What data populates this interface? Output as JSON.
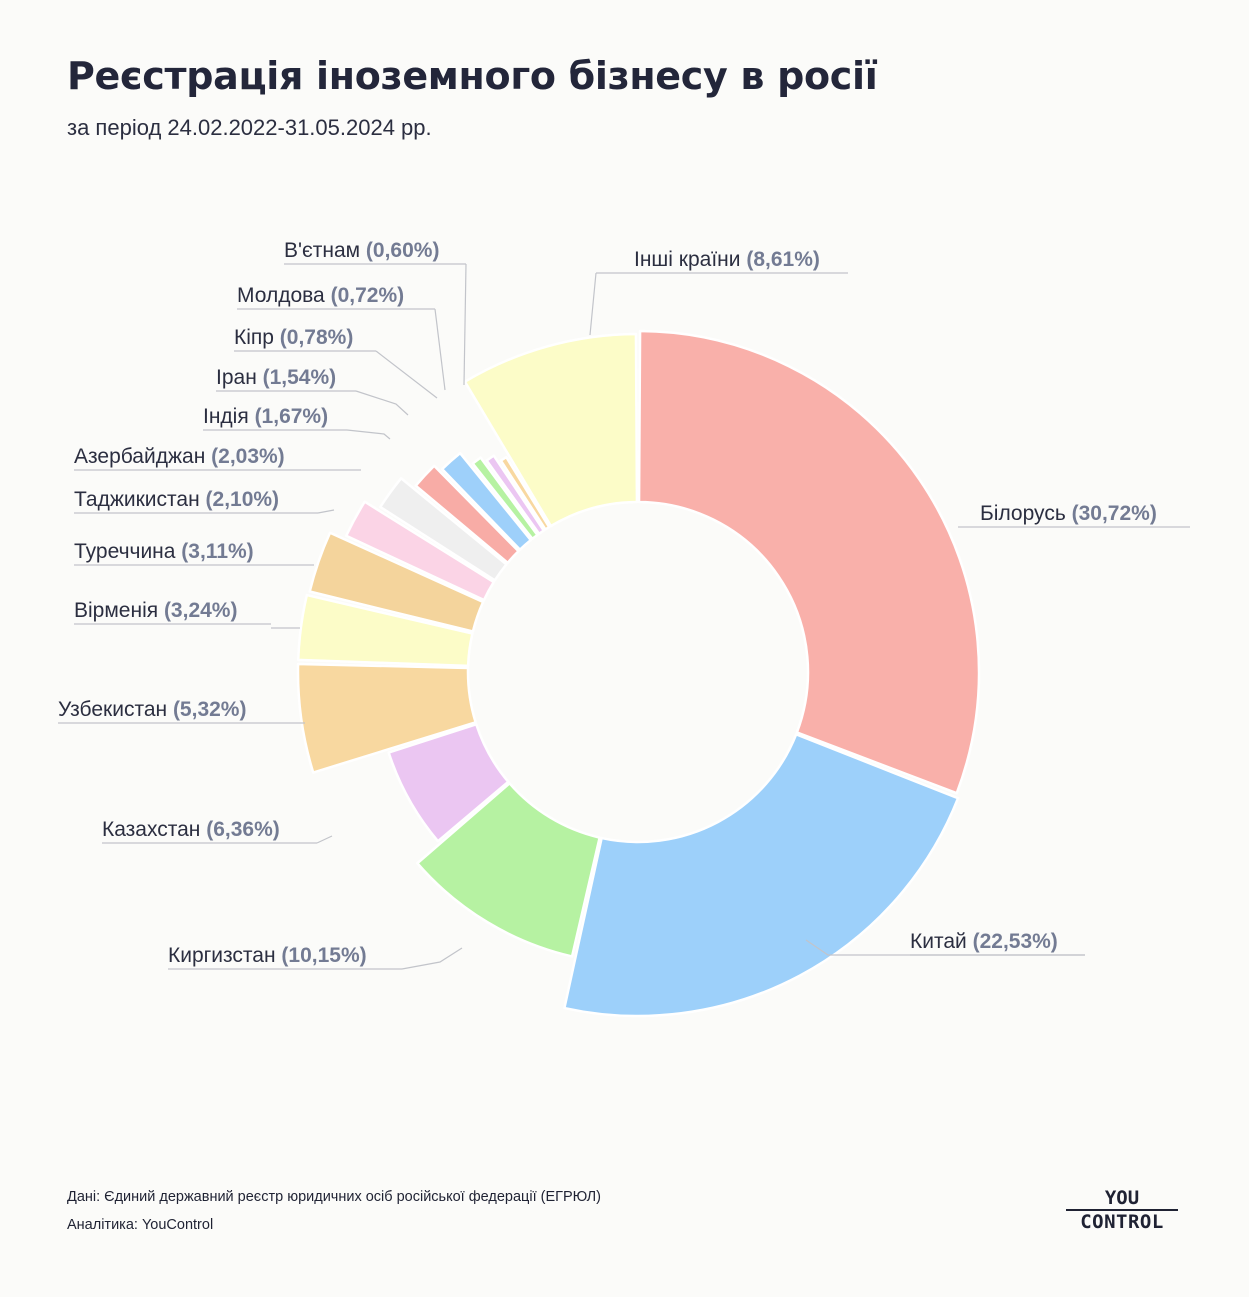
{
  "header": {
    "title": "Реєстрація іноземного бізнесу в росії",
    "subtitle": "за період 24.02.2022-31.05.2024 рр."
  },
  "chart_data": {
    "type": "donut",
    "unit": "%",
    "slices": [
      {
        "label": "Білорусь",
        "pct_text": "(30,72%)",
        "value": 30.72,
        "color": "#f9b0aa"
      },
      {
        "label": "Китай",
        "pct_text": "(22,53%)",
        "value": 22.53,
        "color": "#9dd0fa"
      },
      {
        "label": "Киргизстан",
        "pct_text": "(10,15%)",
        "value": 10.15,
        "color": "#b6f2a2"
      },
      {
        "label": "Казахстан",
        "pct_text": "(6,36%)",
        "value": 6.36,
        "color": "#ebc6f2"
      },
      {
        "label": "Узбекистан",
        "pct_text": "(5,32%)",
        "value": 5.32,
        "color": "#f8d8a0"
      },
      {
        "label": "Вірменія",
        "pct_text": "(3,24%)",
        "value": 3.24,
        "color": "#fcfcc8"
      },
      {
        "label": "Туреччина",
        "pct_text": "(3,11%)",
        "value": 3.11,
        "color": "#f4d49c"
      },
      {
        "label": "Таджикистан",
        "pct_text": "(2,10%)",
        "value": 2.1,
        "color": "#fbd4e6"
      },
      {
        "label": "Азербайджан",
        "pct_text": "(2,03%)",
        "value": 2.03,
        "color": "#efefef"
      },
      {
        "label": "Індія",
        "pct_text": "(1,67%)",
        "value": 1.67,
        "color": "#f8aca6"
      },
      {
        "label": "Іран",
        "pct_text": "(1,54%)",
        "value": 1.54,
        "color": "#9ed0fa"
      },
      {
        "label": "Кіпр",
        "pct_text": "(0,78%)",
        "value": 0.78,
        "color": "#b6f2a2"
      },
      {
        "label": "Молдова",
        "pct_text": "(0,72%)",
        "value": 0.72,
        "color": "#ebc6f2"
      },
      {
        "label": "В'єтнам",
        "pct_text": "(0,60%)",
        "value": 0.6,
        "color": "#f8d8a0"
      },
      {
        "label": "Інші країни",
        "pct_text": "(8,61%)",
        "value": 8.61,
        "color": "#fcfcc8"
      }
    ]
  },
  "footer": {
    "source": "Дані: Єдиний державний реєстр юридичних осіб російської федерації (ЕГРЮЛ)",
    "analytics": "Аналітика: YouControl"
  },
  "logo": {
    "top": "YOU",
    "bottom": "CONTROL"
  }
}
